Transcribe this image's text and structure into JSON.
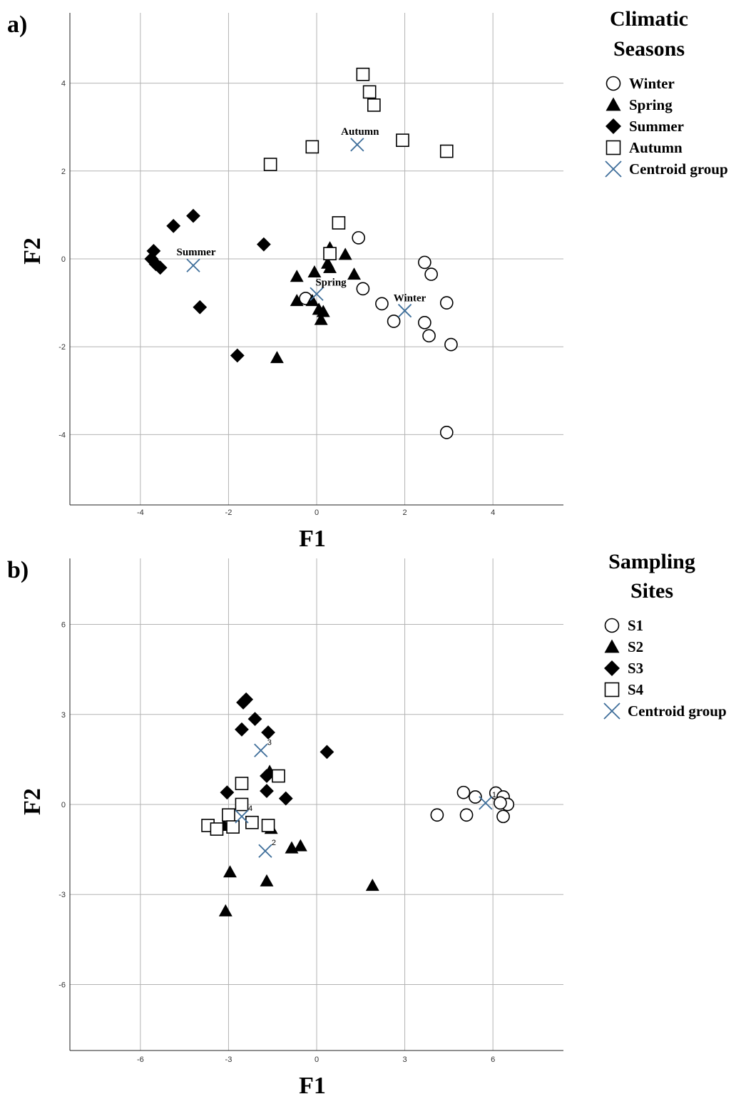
{
  "colors": {
    "centroid": "#3e6e9a",
    "marker": "#000000",
    "grid": "#b3b3b3"
  },
  "chart_data": [
    {
      "type": "scatter",
      "panel_label": "a)",
      "xlabel": "F1",
      "ylabel": "F2",
      "xlim": [
        -5.6,
        5.6
      ],
      "ylim": [
        -5.6,
        5.6
      ],
      "xticks": [
        -4,
        -2,
        0,
        2,
        4
      ],
      "yticks": [
        -4,
        -2,
        0,
        2,
        4
      ],
      "xtick_labels": [
        "-4",
        "-2",
        "0",
        "2",
        "4"
      ],
      "ytick_labels": [
        "-4",
        "-2",
        "0",
        "2",
        "4"
      ],
      "grid": true,
      "legend": {
        "title_lines": [
          "Climatic",
          "Seasons"
        ],
        "placement": "right",
        "entries": [
          {
            "label": "Winter",
            "marker": "circle"
          },
          {
            "label": "Spring",
            "marker": "triangle"
          },
          {
            "label": "Summer",
            "marker": "diamond"
          },
          {
            "label": "Autumn",
            "marker": "square"
          },
          {
            "label": "Centroid group",
            "marker": "cross"
          }
        ]
      },
      "series": [
        {
          "name": "Winter",
          "marker": "circle",
          "points": [
            [
              0.95,
              0.48
            ],
            [
              1.05,
              -0.68
            ],
            [
              1.48,
              -1.02
            ],
            [
              1.75,
              -1.42
            ],
            [
              2.45,
              -0.08
            ],
            [
              2.6,
              -0.35
            ],
            [
              2.45,
              -1.45
            ],
            [
              2.55,
              -1.75
            ],
            [
              2.95,
              -1.0
            ],
            [
              3.05,
              -1.95
            ],
            [
              2.95,
              -3.95
            ],
            [
              -0.25,
              -0.9
            ]
          ]
        },
        {
          "name": "Spring",
          "marker": "triangle",
          "points": [
            [
              0.25,
              -0.1
            ],
            [
              0.65,
              0.1
            ],
            [
              0.3,
              -0.2
            ],
            [
              0.85,
              -0.35
            ],
            [
              -0.05,
              -0.3
            ],
            [
              -0.45,
              -0.4
            ],
            [
              -0.45,
              -0.95
            ],
            [
              -0.1,
              -0.95
            ],
            [
              0.05,
              -1.15
            ],
            [
              0.15,
              -1.2
            ],
            [
              0.1,
              -1.38
            ],
            [
              -0.9,
              -2.25
            ],
            [
              0.3,
              0.25
            ]
          ]
        },
        {
          "name": "Summer",
          "marker": "diamond",
          "points": [
            [
              -2.8,
              0.98
            ],
            [
              -3.25,
              0.75
            ],
            [
              -1.2,
              0.33
            ],
            [
              -3.7,
              0.18
            ],
            [
              -3.75,
              0.0
            ],
            [
              -3.65,
              -0.12
            ],
            [
              -3.55,
              -0.2
            ],
            [
              -2.65,
              -1.1
            ],
            [
              -1.8,
              -2.2
            ]
          ]
        },
        {
          "name": "Autumn",
          "marker": "square",
          "points": [
            [
              1.05,
              4.2
            ],
            [
              1.2,
              3.8
            ],
            [
              1.3,
              3.5
            ],
            [
              1.95,
              2.7
            ],
            [
              2.95,
              2.45
            ],
            [
              -0.1,
              2.55
            ],
            [
              -1.05,
              2.15
            ],
            [
              0.5,
              0.82
            ],
            [
              0.3,
              0.12
            ]
          ]
        }
      ],
      "centroids": [
        {
          "label": "Autumn",
          "x": 0.92,
          "y": 2.6
        },
        {
          "label": "Summer",
          "x": -2.8,
          "y": -0.15
        },
        {
          "label": "Spring",
          "x": 0.0,
          "y": -0.8
        },
        {
          "label": "Winter",
          "x": 2.0,
          "y": -1.18
        }
      ]
    },
    {
      "type": "scatter",
      "panel_label": "b)",
      "xlabel": "F1",
      "ylabel": "F2",
      "xlim": [
        -8.4,
        8.4
      ],
      "ylim": [
        -8.2,
        8.2
      ],
      "xticks": [
        -6,
        -3,
        0,
        3,
        6
      ],
      "yticks": [
        -6,
        -3,
        0,
        3,
        6
      ],
      "xtick_labels": [
        "-6",
        "-3",
        "0",
        "3",
        "6"
      ],
      "ytick_labels": [
        "-6",
        "-3",
        "0",
        "3",
        "6"
      ],
      "grid": true,
      "legend": {
        "title_lines": [
          "Sampling",
          "Sites"
        ],
        "placement": "right",
        "entries": [
          {
            "label": "S1",
            "marker": "circle"
          },
          {
            "label": "S2",
            "marker": "triangle"
          },
          {
            "label": "S3",
            "marker": "diamond"
          },
          {
            "label": "S4",
            "marker": "square"
          },
          {
            "label": "Centroid group",
            "marker": "cross"
          }
        ]
      },
      "series": [
        {
          "name": "S1",
          "marker": "circle",
          "points": [
            [
              5.0,
              0.4
            ],
            [
              5.4,
              0.25
            ],
            [
              6.1,
              0.38
            ],
            [
              6.35,
              0.25
            ],
            [
              6.5,
              0.0
            ],
            [
              6.25,
              0.05
            ],
            [
              6.35,
              -0.4
            ],
            [
              5.1,
              -0.35
            ],
            [
              4.1,
              -0.35
            ]
          ]
        },
        {
          "name": "S2",
          "marker": "triangle",
          "points": [
            [
              -1.6,
              1.1
            ],
            [
              -1.55,
              -0.8
            ],
            [
              -0.85,
              -1.45
            ],
            [
              -0.55,
              -1.38
            ],
            [
              -2.95,
              -2.25
            ],
            [
              -1.7,
              -2.55
            ],
            [
              -3.1,
              -3.55
            ],
            [
              1.9,
              -2.7
            ],
            [
              -3.15,
              -0.7
            ]
          ]
        },
        {
          "name": "S3",
          "marker": "diamond",
          "points": [
            [
              -2.4,
              3.5
            ],
            [
              -2.5,
              3.4
            ],
            [
              -2.1,
              2.85
            ],
            [
              -2.55,
              2.5
            ],
            [
              -1.65,
              2.4
            ],
            [
              0.35,
              1.75
            ],
            [
              -1.7,
              0.95
            ],
            [
              -1.7,
              0.45
            ],
            [
              -1.05,
              0.2
            ],
            [
              -3.05,
              0.4
            ]
          ]
        },
        {
          "name": "S4",
          "marker": "square",
          "points": [
            [
              -1.3,
              0.95
            ],
            [
              -2.55,
              0.7
            ],
            [
              -2.55,
              0.0
            ],
            [
              -3.0,
              -0.35
            ],
            [
              -2.2,
              -0.6
            ],
            [
              -1.65,
              -0.7
            ],
            [
              -3.7,
              -0.7
            ],
            [
              -3.4,
              -0.82
            ],
            [
              -2.85,
              -0.75
            ]
          ]
        }
      ],
      "centroids": [
        {
          "label": "3",
          "x": -1.9,
          "y": 1.8
        },
        {
          "label": "4",
          "x": -2.55,
          "y": -0.4
        },
        {
          "label": "2",
          "x": -1.75,
          "y": -1.55
        },
        {
          "label": "1",
          "x": 5.75,
          "y": 0.05
        }
      ]
    }
  ]
}
